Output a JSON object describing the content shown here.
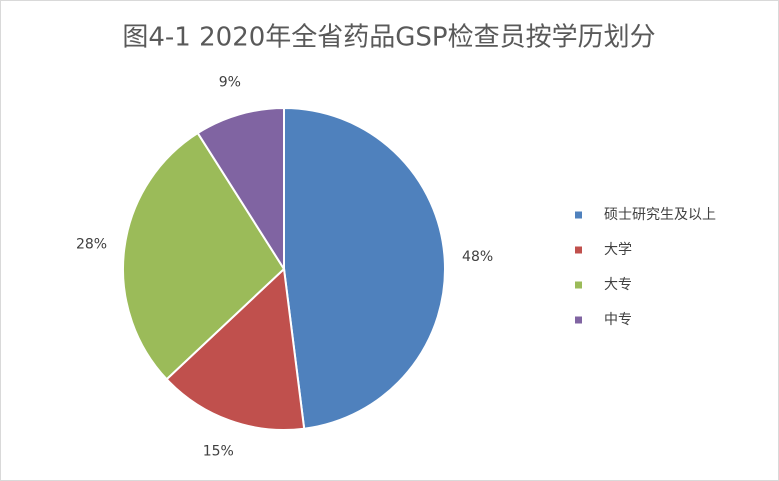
{
  "chart_data": {
    "type": "pie",
    "title": "图4-1  2020年全省药品GSP检查员按学历划分",
    "categories": [
      "硕士研究生及以上",
      "大学",
      "大专",
      "中专"
    ],
    "values": [
      48,
      15,
      28,
      9
    ],
    "value_labels": [
      "48%",
      "15%",
      "28%",
      "9%"
    ],
    "colors": [
      "#4f81bd",
      "#c0504d",
      "#9bbb59",
      "#8064a2"
    ],
    "legend": "right"
  }
}
